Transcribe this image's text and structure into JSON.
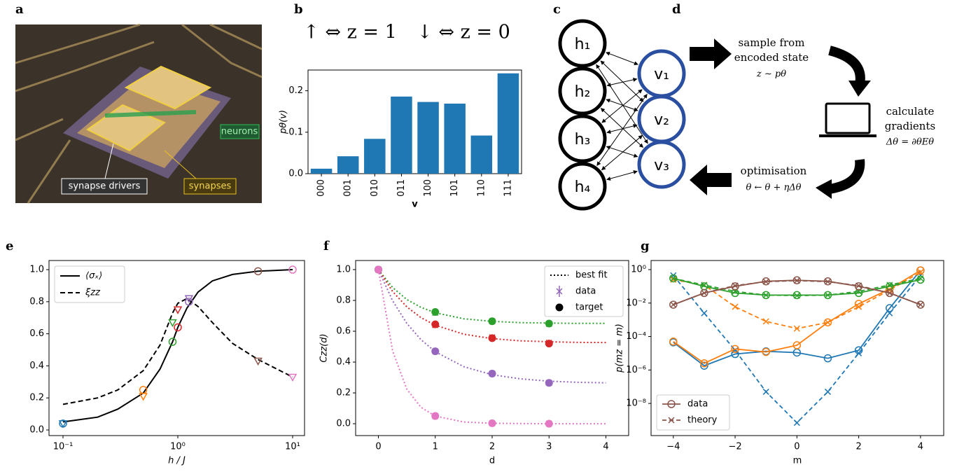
{
  "panel_labels": [
    "a",
    "b",
    "c",
    "d",
    "e",
    "f",
    "g"
  ],
  "photo": {
    "labels": [
      "neurons",
      "synapse drivers",
      "synapses"
    ]
  },
  "diagram_c": {
    "hidden": [
      "h₁",
      "h₂",
      "h₃",
      "h₄"
    ],
    "visible": [
      "v₁",
      "v₂",
      "v₃"
    ]
  },
  "diagram_d": {
    "steps": [
      {
        "lines": [
          "sample from",
          "encoded state"
        ],
        "formula": "z ∼ pθ"
      },
      {
        "lines": [
          "calculate",
          "gradients"
        ],
        "formula": "Δθ = ∂θEθ"
      },
      {
        "lines": [
          "optimisation"
        ],
        "formula": "θ ← θ + ηΔθ"
      }
    ]
  },
  "chart_data": [
    {
      "type": "bar",
      "annotations": [
        "↑ ⇔ z = 1",
        "↓ ⇔ z = 0"
      ],
      "ylabel": "pθ(v)",
      "xlabel": "v",
      "categories": [
        "000",
        "001",
        "010",
        "011",
        "100",
        "101",
        "110",
        "111"
      ],
      "values": [
        0.012,
        0.042,
        0.084,
        0.186,
        0.173,
        0.169,
        0.092,
        0.242
      ],
      "color": "#1f77b4",
      "ylim": [
        0,
        0.25
      ],
      "yticks": [
        {
          "value": 0,
          "label": "0.0"
        },
        0.1,
        0.2
      ]
    },
    {
      "type": "line",
      "xscale": "log",
      "xlabel": "h / J",
      "xlim": [
        0.0755,
        12.7
      ],
      "xticks": [
        {
          "value": 0.1,
          "label": "10⁻¹"
        },
        {
          "value": 1,
          "label": "10⁰"
        },
        {
          "value": 10,
          "label": "10¹"
        }
      ],
      "ylim": [
        -0.035,
        1.057
      ],
      "yticks": [
        {
          "value": 0,
          "label": "0.0"
        },
        0.2,
        0.4,
        0.6,
        0.8,
        {
          "value": 1,
          "label": "1.0"
        }
      ],
      "legend": "upper left",
      "series": [
        {
          "name": "⟨σₓ⟩",
          "color": "#000000",
          "linestyle": "solid",
          "x": [
            0.1,
            0.2,
            0.3,
            0.5,
            0.7,
            0.9,
            1.0,
            1.2,
            1.5,
            2,
            3,
            5,
            10
          ],
          "values": [
            0.05,
            0.08,
            0.13,
            0.23,
            0.38,
            0.55,
            0.64,
            0.76,
            0.86,
            0.93,
            0.97,
            0.99,
            1.0
          ]
        },
        {
          "name": "ξzz",
          "color": "#000000",
          "linestyle": "dashed",
          "x": [
            0.1,
            0.2,
            0.3,
            0.5,
            0.7,
            0.9,
            1.0,
            1.2,
            1.5,
            2,
            3,
            5,
            10
          ],
          "values": [
            0.16,
            0.2,
            0.25,
            0.37,
            0.53,
            0.73,
            0.79,
            0.82,
            0.77,
            0.67,
            0.54,
            0.44,
            0.33
          ]
        }
      ],
      "markers": {
        "x": [
          0.1,
          0.5,
          0.9,
          1.0,
          1.25,
          5,
          10
        ],
        "colors": [
          "#1f77b4",
          "#ff7f0e",
          "#2ca02c",
          "#d62728",
          "#9467bd",
          "#8c564b",
          "#e377c2"
        ],
        "circle_values": [
          0.04,
          0.25,
          0.55,
          0.64,
          0.8,
          0.99,
          1.0
        ],
        "triangle_values": [
          0.04,
          0.21,
          0.67,
          0.75,
          0.82,
          0.43,
          0.33
        ]
      }
    },
    {
      "type": "line",
      "xlabel": "d",
      "ylabel": "Czz(d)",
      "xlim": [
        -0.4,
        4.4
      ],
      "xticks": [
        0,
        1,
        2,
        3,
        4
      ],
      "ylim": [
        -0.077,
        1.059
      ],
      "yticks": [
        {
          "value": 0,
          "label": "0.0"
        },
        0.2,
        0.4,
        0.6,
        0.8,
        {
          "value": 1,
          "label": "1.0"
        }
      ],
      "legend": "upper right",
      "legend_labels": [
        "best fit",
        "data",
        "target"
      ],
      "series": [
        {
          "color": "#2ca02c",
          "fit_x": [
            0,
            0.25,
            0.5,
            0.75,
            1,
            1.5,
            2,
            2.5,
            3,
            3.5,
            4
          ],
          "fit_values": [
            1,
            0.884,
            0.806,
            0.755,
            0.72,
            0.681,
            0.664,
            0.656,
            0.653,
            0.651,
            0.651
          ],
          "x": [
            0,
            1,
            2,
            3
          ],
          "data_values": [
            1,
            0.72,
            0.665,
            0.648
          ],
          "target_values": [
            1,
            0.725,
            0.665,
            0.65
          ]
        },
        {
          "color": "#d62728",
          "fit_x": [
            0,
            0.25,
            0.5,
            0.75,
            1,
            1.5,
            2,
            2.5,
            3,
            3.5,
            4
          ],
          "fit_values": [
            1,
            0.858,
            0.758,
            0.688,
            0.639,
            0.581,
            0.552,
            0.538,
            0.532,
            0.528,
            0.527
          ],
          "x": [
            0,
            1,
            2,
            3
          ],
          "data_values": [
            1,
            0.64,
            0.56,
            0.525
          ],
          "target_values": [
            1,
            0.645,
            0.555,
            0.52
          ]
        },
        {
          "color": "#9467bd",
          "fit_x": [
            0,
            0.25,
            0.5,
            0.75,
            1,
            1.5,
            2,
            2.5,
            3,
            3.5,
            4
          ],
          "fit_values": [
            1,
            0.798,
            0.651,
            0.545,
            0.467,
            0.37,
            0.318,
            0.291,
            0.276,
            0.269,
            0.265
          ],
          "x": [
            0,
            1,
            2,
            3
          ],
          "data_values": [
            1,
            0.47,
            0.325,
            0.265
          ],
          "target_values": [
            1,
            0.47,
            0.325,
            0.265
          ]
        },
        {
          "color": "#e377c2",
          "fit_x": [
            0,
            0.25,
            0.5,
            0.75,
            1,
            1.5,
            2,
            2.5,
            3,
            3.5,
            4
          ],
          "fit_values": [
            1,
            0.473,
            0.224,
            0.106,
            0.05,
            0.011,
            0.003,
            0.001,
            0,
            0,
            0
          ],
          "x": [
            0,
            1,
            2,
            3
          ],
          "data_values": [
            1,
            0.05,
            0.003,
            0.0
          ],
          "target_values": [
            1,
            0.05,
            0.003,
            0.0
          ]
        }
      ]
    },
    {
      "type": "line",
      "yscale": "log",
      "xlabel": "m",
      "ylabel": "p(mz = m)",
      "xlim": [
        -4.72,
        4.75
      ],
      "xticks": [
        {
          "value": -4,
          "label": "−4"
        },
        {
          "value": -2,
          "label": "−2"
        },
        0,
        2,
        4
      ],
      "ylim": [
        1.2e-10,
        3.5
      ],
      "yticks": [
        {
          "value": 1,
          "label": "10⁰"
        },
        {
          "value": 0.01,
          "label": "10⁻²"
        },
        {
          "value": 0.0001,
          "label": "10⁻⁴"
        },
        {
          "value": 1e-06,
          "label": "10⁻⁶"
        },
        {
          "value": 1e-08,
          "label": "10⁻⁸"
        }
      ],
      "legend": "lower left",
      "legend_labels": [
        "data",
        "theory"
      ],
      "series": [
        {
          "color": "#1f77b4",
          "x": [
            -4,
            -3,
            -2,
            -1,
            0,
            1,
            2,
            3,
            4
          ],
          "data_values": [
            4.5e-05,
            1.8e-06,
            9e-06,
            1.3e-05,
            1.1e-05,
            5e-06,
            1.5e-05,
            0.005,
            0.9
          ],
          "theory_values": [
            0.45,
            0.0025,
            1.5e-05,
            5e-08,
            7e-10,
            5e-08,
            1e-05,
            0.0025,
            0.45
          ]
        },
        {
          "color": "#ff7f0e",
          "x": [
            -4,
            -3,
            -2,
            -1,
            0,
            1,
            2,
            3,
            4
          ],
          "data_values": [
            5e-05,
            2.5e-06,
            1.8e-05,
            1.2e-05,
            3e-05,
            0.0007,
            0.009,
            0.07,
            0.9
          ],
          "theory_values": [
            0.25,
            0.12,
            0.006,
            0.0008,
            0.0003,
            0.0007,
            0.006,
            0.06,
            0.7
          ]
        },
        {
          "color": "#2ca02c",
          "x": [
            -4,
            -3,
            -2,
            -1,
            0,
            1,
            2,
            3,
            4
          ],
          "data_values": [
            0.3,
            0.1,
            0.04,
            0.03,
            0.03,
            0.03,
            0.04,
            0.1,
            0.25
          ],
          "theory_values": [
            0.3,
            0.12,
            0.05,
            0.03,
            0.028,
            0.03,
            0.05,
            0.12,
            0.3
          ]
        },
        {
          "color": "#8c564b",
          "x": [
            -4,
            -3,
            -2,
            -1,
            0,
            1,
            2,
            3,
            4
          ],
          "data_values": [
            0.008,
            0.04,
            0.1,
            0.2,
            0.23,
            0.2,
            0.1,
            0.04,
            0.008
          ],
          "theory_values": [
            0.008,
            0.04,
            0.11,
            0.19,
            0.22,
            0.19,
            0.11,
            0.04,
            0.008
          ]
        }
      ]
    }
  ]
}
